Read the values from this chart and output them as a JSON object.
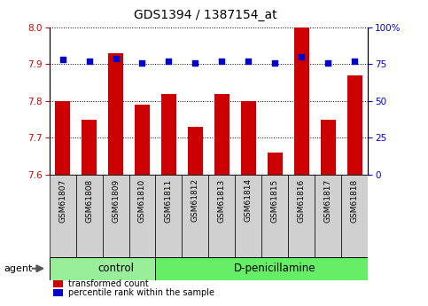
{
  "title": "GDS1394 / 1387154_at",
  "samples": [
    "GSM61807",
    "GSM61808",
    "GSM61809",
    "GSM61810",
    "GSM61811",
    "GSM61812",
    "GSM61813",
    "GSM61814",
    "GSM61815",
    "GSM61816",
    "GSM61817",
    "GSM61818"
  ],
  "transformed_count": [
    7.8,
    7.75,
    7.93,
    7.79,
    7.82,
    7.73,
    7.82,
    7.8,
    7.66,
    8.0,
    7.75,
    7.87
  ],
  "percentile_rank": [
    78,
    77,
    79,
    76,
    77,
    76,
    77,
    77,
    76,
    80,
    76,
    77
  ],
  "ylim_left": [
    7.6,
    8.0
  ],
  "ylim_right": [
    0,
    100
  ],
  "yticks_left": [
    7.6,
    7.7,
    7.8,
    7.9,
    8.0
  ],
  "yticks_right": [
    0,
    25,
    50,
    75,
    100
  ],
  "bar_color": "#cc0000",
  "dot_color": "#0000cc",
  "bar_bottom": 7.6,
  "groups": [
    {
      "label": "control",
      "start": 0,
      "end": 4,
      "color": "#99ee99"
    },
    {
      "label": "D-penicillamine",
      "start": 4,
      "end": 12,
      "color": "#66ee66"
    }
  ],
  "legend_items": [
    {
      "color": "#cc0000",
      "label": "transformed count"
    },
    {
      "color": "#0000cc",
      "label": "percentile rank within the sample"
    }
  ],
  "background_color": "#ffffff",
  "tick_label_color_left": "#cc0000",
  "tick_label_color_right": "#0000cc",
  "title_fontsize": 10,
  "axis_fontsize": 7.5,
  "sample_label_fontsize": 6.5,
  "group_label_fontsize": 8.5
}
